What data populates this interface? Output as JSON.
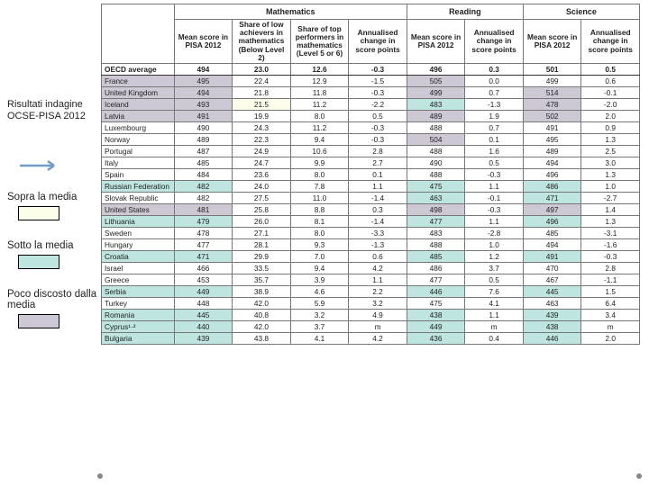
{
  "sidebar": {
    "title": "Risultati indagine OCSE-PISA 2012",
    "legend_above": "Sopra la media",
    "legend_below": "Sotto la media",
    "legend_near": "Poco discosto dalla media",
    "color_above": "#fdfeea",
    "color_below": "#bfe5e0",
    "color_near": "#cdc8d3",
    "arrow_color": "#6f9ec9"
  },
  "headers": {
    "group_math": "Mathematics",
    "group_read": "Reading",
    "group_sci": "Science",
    "mean_2012": "Mean score in PISA 2012",
    "share_low": "Share of low achievers in mathematics (Below Level 2)",
    "share_top": "Share of top performers in mathematics (Level 5 or 6)",
    "ann_change": "Annualised change in score points"
  },
  "oecd": {
    "label": "OECD average",
    "v": [
      "494",
      "23.0",
      "12.6",
      "-0.3",
      "496",
      "0.3",
      "501",
      "0.5"
    ]
  },
  "rows": [
    {
      "c": "France",
      "hl": [
        "near",
        "",
        "",
        "",
        "near",
        "",
        "",
        " "
      ],
      "v": [
        "495",
        "22.4",
        "12.9",
        "-1.5",
        "505",
        "0.0",
        "499",
        "0.6"
      ]
    },
    {
      "c": "United Kingdom",
      "hl": [
        "near",
        "",
        "",
        "",
        "near",
        "",
        "near",
        ""
      ],
      "v": [
        "494",
        "21.8",
        "11.8",
        "-0.3",
        "499",
        "0.7",
        "514",
        "-0.1"
      ]
    },
    {
      "c": "Iceland",
      "hl": [
        "near",
        "above",
        "",
        "",
        "below",
        "",
        "near",
        ""
      ],
      "v": [
        "493",
        "21.5",
        "11.2",
        "-2.2",
        "483",
        "-1.3",
        "478",
        "-2.0"
      ]
    },
    {
      "c": "Latvia",
      "hl": [
        "near",
        "",
        "",
        "",
        "near",
        "",
        "near",
        ""
      ],
      "v": [
        "491",
        "19.9",
        "8.0",
        "0.5",
        "489",
        "1.9",
        "502",
        "2.0"
      ]
    },
    {
      "c": "Luxembourg",
      "hl": [
        "",
        "",
        "",
        "",
        "",
        "",
        "",
        ""
      ],
      "v": [
        "490",
        "24.3",
        "11.2",
        "-0.3",
        "488",
        "0.7",
        "491",
        "0.9"
      ]
    },
    {
      "c": "Norway",
      "hl": [
        "",
        "",
        "",
        "",
        "near",
        "",
        "",
        ""
      ],
      "v": [
        "489",
        "22.3",
        "9.4",
        "-0.3",
        "504",
        "0.1",
        "495",
        "1.3"
      ]
    },
    {
      "c": "Portugal",
      "hl": [
        "",
        "",
        "",
        "",
        "",
        "",
        "",
        ""
      ],
      "v": [
        "487",
        "24.9",
        "10.6",
        "2.8",
        "488",
        "1.6",
        "489",
        "2.5"
      ]
    },
    {
      "c": "Italy",
      "hl": [
        "",
        "",
        "",
        "",
        "",
        "",
        "",
        ""
      ],
      "v": [
        "485",
        "24.7",
        "9.9",
        "2.7",
        "490",
        "0.5",
        "494",
        "3.0"
      ]
    },
    {
      "c": "Spain",
      "hl": [
        "",
        "",
        "",
        "",
        "",
        "",
        "",
        ""
      ],
      "v": [
        "484",
        "23.6",
        "8.0",
        "0.1",
        "488",
        "-0.3",
        "496",
        "1.3"
      ]
    },
    {
      "c": "Russian Federation",
      "hl": [
        "below",
        "",
        "",
        "",
        "below",
        "",
        "below",
        ""
      ],
      "v": [
        "482",
        "24.0",
        "7.8",
        "1.1",
        "475",
        "1.1",
        "486",
        "1.0"
      ]
    },
    {
      "c": "Slovak Republic",
      "hl": [
        "",
        "",
        "",
        "",
        "below",
        "",
        "below",
        ""
      ],
      "v": [
        "482",
        "27.5",
        "11.0",
        "-1.4",
        "463",
        "-0.1",
        "471",
        "-2.7"
      ]
    },
    {
      "c": "United States",
      "hl": [
        "near",
        "",
        "",
        "",
        "near",
        "",
        "near",
        ""
      ],
      "v": [
        "481",
        "25.8",
        "8.8",
        "0.3",
        "498",
        "-0.3",
        "497",
        "1.4"
      ]
    },
    {
      "c": "Lithuania",
      "hl": [
        "below",
        "",
        "",
        "",
        "below",
        "",
        "below",
        ""
      ],
      "v": [
        "479",
        "26.0",
        "8.1",
        "-1.4",
        "477",
        "1.1",
        "496",
        "1.3"
      ]
    },
    {
      "c": "Sweden",
      "hl": [
        "",
        "",
        "",
        "",
        "",
        "",
        "",
        ""
      ],
      "v": [
        "478",
        "27.1",
        "8.0",
        "-3.3",
        "483",
        "-2.8",
        "485",
        "-3.1"
      ]
    },
    {
      "c": "Hungary",
      "hl": [
        "",
        "",
        "",
        "",
        "",
        "",
        "",
        ""
      ],
      "v": [
        "477",
        "28.1",
        "9.3",
        "-1.3",
        "488",
        "1.0",
        "494",
        "-1.6"
      ]
    },
    {
      "c": "Croatia",
      "hl": [
        "below",
        "",
        "",
        "",
        "below",
        "",
        "below",
        ""
      ],
      "v": [
        "471",
        "29.9",
        "7.0",
        "0.6",
        "485",
        "1.2",
        "491",
        "-0.3"
      ]
    },
    {
      "c": "Israel",
      "hl": [
        "",
        "",
        "",
        "",
        "",
        "",
        "",
        ""
      ],
      "v": [
        "466",
        "33.5",
        "9.4",
        "4.2",
        "486",
        "3.7",
        "470",
        "2.8"
      ]
    },
    {
      "c": "Greece",
      "hl": [
        "",
        "",
        "",
        "",
        "",
        "",
        "",
        ""
      ],
      "v": [
        "453",
        "35.7",
        "3.9",
        "1.1",
        "477",
        "0.5",
        "467",
        "-1.1"
      ]
    },
    {
      "c": "Serbia",
      "hl": [
        "below",
        "",
        "",
        "",
        "below",
        "",
        "below",
        ""
      ],
      "v": [
        "449",
        "38.9",
        "4.6",
        "2.2",
        "446",
        "7.6",
        "445",
        "1.5"
      ]
    },
    {
      "c": "Turkey",
      "hl": [
        "",
        "",
        "",
        "",
        "",
        "",
        "",
        ""
      ],
      "v": [
        "448",
        "42.0",
        "5.9",
        "3.2",
        "475",
        "4.1",
        "463",
        "6.4"
      ]
    },
    {
      "c": "Romania",
      "hl": [
        "below",
        "",
        "",
        "",
        "below",
        "",
        "below",
        ""
      ],
      "v": [
        "445",
        "40.8",
        "3.2",
        "4.9",
        "438",
        "1.1",
        "439",
        "3.4"
      ]
    },
    {
      "c": "Cyprus¹·²",
      "hl": [
        "below",
        "",
        "",
        "",
        "below",
        "",
        "below",
        ""
      ],
      "v": [
        "440",
        "42.0",
        "3.7",
        "m",
        "449",
        "m",
        "438",
        "m"
      ]
    },
    {
      "c": "Bulgaria",
      "hl": [
        "below",
        "",
        "",
        "",
        "below",
        "",
        "below",
        ""
      ],
      "v": [
        "439",
        "43.8",
        "4.1",
        "4.2",
        "436",
        "0.4",
        "446",
        "2.0"
      ]
    }
  ]
}
